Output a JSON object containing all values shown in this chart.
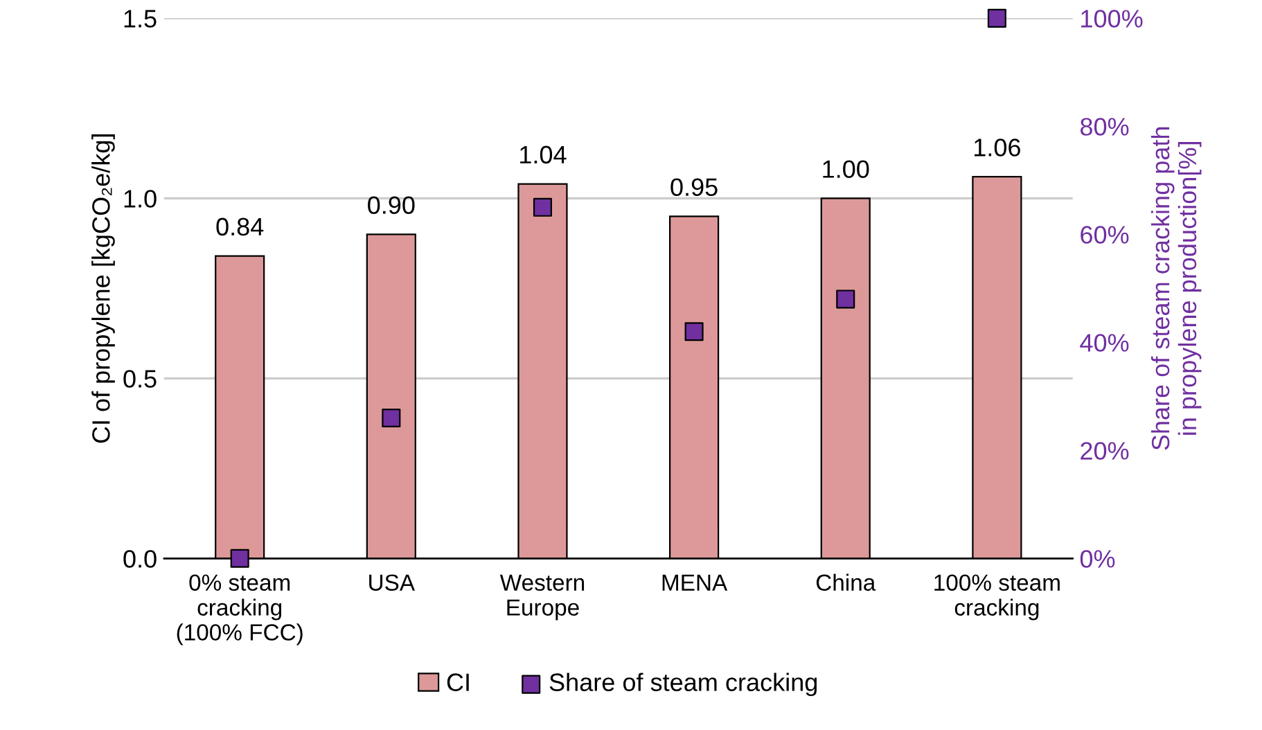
{
  "chart_data": {
    "type": "bar",
    "ylabel": "CI of propylene [kgCO₂e/kg]",
    "y2label": "Share of steam cracking path\nin propylene production[%]",
    "categories": [
      "0% steam\ncracking\n(100% FCC)",
      "USA",
      "Western\nEurope",
      "MENA",
      "China",
      "100% steam\ncracking"
    ],
    "series": [
      {
        "name": "CI",
        "color": "#dd9999",
        "values": [
          0.84,
          0.9,
          1.04,
          0.95,
          1.0,
          1.06
        ],
        "value_labels": [
          "0.84",
          "0.90",
          "1.04",
          "0.95",
          "1.00",
          "1.06"
        ]
      },
      {
        "name": "Share of steam cracking",
        "type": "scatter",
        "axis": "y2",
        "color": "#7030a0",
        "marker": "square",
        "values": [
          0,
          26,
          65,
          42,
          48,
          100
        ]
      }
    ],
    "ylim": [
      0,
      1.5
    ],
    "yticks": [
      {
        "value": 0,
        "label": "0.0"
      },
      0.5,
      {
        "value": 1,
        "label": "1.0"
      },
      1.5
    ],
    "y2lim": [
      0,
      100
    ],
    "y2ticks": [
      {
        "value": 0,
        "label": "0%"
      },
      {
        "value": 20,
        "label": "20%"
      },
      {
        "value": 40,
        "label": "40%"
      },
      {
        "value": 60,
        "label": "60%"
      },
      {
        "value": 80,
        "label": "80%"
      },
      {
        "value": 100,
        "label": "100%"
      }
    ],
    "grid": "y",
    "legend": "bottom"
  }
}
